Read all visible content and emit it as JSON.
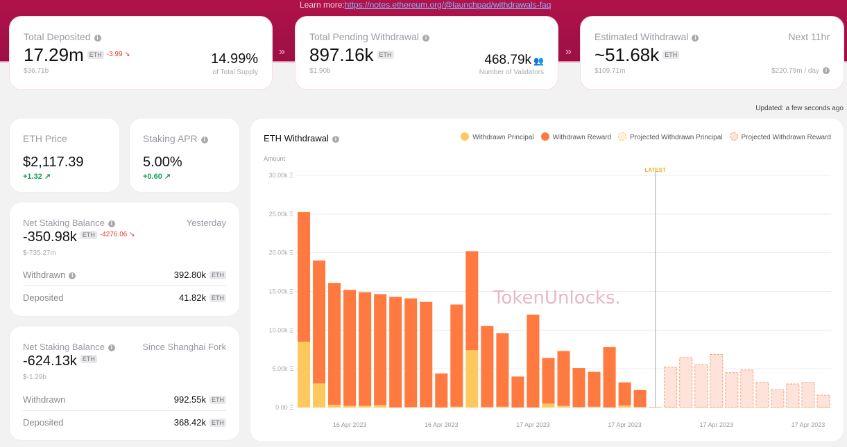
{
  "header": {
    "learn_more": "Learn more:",
    "link": "https://notes.ethereum.org/@launchpad/withdrawals-faq"
  },
  "total_deposited": {
    "label": "Total Deposited",
    "value": "17.29m",
    "unit": "ETH",
    "change": "-3.99 ↘",
    "usd": "$36.71b",
    "pct": "14.99%",
    "pct_label": "of Total Supply"
  },
  "pending": {
    "label": "Total Pending Withdrawal",
    "value": "897.16k",
    "unit": "ETH",
    "usd": "$1.90b",
    "validators": "468.79k",
    "validators_label": "Number of Validators"
  },
  "estimated": {
    "label": "Estimated Withdrawal",
    "period": "Next 11hr",
    "value": "~51.68k",
    "unit": "ETH",
    "usd": "$109.71m",
    "per_day": "$220.79m / day"
  },
  "updated": "Updated: a few seconds ago",
  "eth_price": {
    "label": "ETH Price",
    "value": "$2,117.39",
    "change": "+1.32 ↗"
  },
  "apr": {
    "label": "Staking APR",
    "value": "5.00%",
    "change": "+0.60 ↗"
  },
  "net_yesterday": {
    "label": "Net Staking Balance",
    "period": "Yesterday",
    "value": "-350.98k",
    "unit": "ETH",
    "change": "-4276.06 ↘",
    "usd": "$-735.27m",
    "withdrawn_label": "Withdrawn",
    "withdrawn": "392.80k",
    "deposited_label": "Deposited",
    "deposited": "41.82k"
  },
  "net_shanghai": {
    "label": "Net Staking Balance",
    "period": "Since Shanghai Fork",
    "value": "-624.13k",
    "unit": "ETH",
    "usd": "$-1.29b",
    "withdrawn_label": "Withdrawn",
    "withdrawn": "992.55k",
    "deposited_label": "Deposited",
    "deposited": "368.42k"
  },
  "colors": {
    "principal": "#fdc95f",
    "reward": "#ff7a40",
    "projected_fill": "#fde3d9",
    "brand": "#a8104a"
  },
  "chart_data": {
    "type": "bar",
    "stacked": true,
    "title": "ETH Withdrawal",
    "ylabel": "Amount",
    "ylim": [
      0,
      30000
    ],
    "yticks": [
      "0.00 Ξ",
      "5.00k Ξ",
      "10.00k Ξ",
      "15.00k Ξ",
      "20.00k Ξ",
      "25.00k Ξ",
      "30.00k Ξ"
    ],
    "xticks": [
      {
        "index": 3,
        "label": "16 Apr 2023"
      },
      {
        "index": 9,
        "label": "16 Apr 2023"
      },
      {
        "index": 15,
        "label": "17 Apr 2023"
      },
      {
        "index": 21,
        "label": "17 Apr 2023"
      },
      {
        "index": 27,
        "label": "17 Apr 2023"
      },
      {
        "index": 33,
        "label": "17 Apr 2023"
      }
    ],
    "marker": {
      "label": "LATEST",
      "index": 23
    },
    "legend": [
      "Withdrawn Principal",
      "Withdrawn Reward",
      "Projected Withdrawn Principal",
      "Projected Withdrawn Reward"
    ],
    "series": [
      {
        "name": "Withdrawn Principal",
        "values": [
          8500,
          3100,
          350,
          200,
          200,
          300,
          0,
          50,
          50,
          0,
          100,
          7400,
          50,
          100,
          0,
          0,
          500,
          200,
          50,
          100,
          0,
          250,
          50,
          0,
          null,
          null,
          null,
          null,
          null,
          null,
          null,
          null,
          null,
          null,
          null
        ]
      },
      {
        "name": "Withdrawn Reward",
        "values": [
          16750,
          15900,
          15750,
          15000,
          14700,
          14350,
          14300,
          14050,
          13600,
          4400,
          13200,
          12800,
          10500,
          9500,
          4000,
          12000,
          5900,
          7100,
          5050,
          4500,
          7800,
          3000,
          2200,
          50,
          null,
          null,
          null,
          null,
          null,
          null,
          null,
          null,
          null,
          null,
          null
        ]
      },
      {
        "name": "Projected Withdrawn Principal",
        "values": [
          null,
          null,
          null,
          null,
          null,
          null,
          null,
          null,
          null,
          null,
          null,
          null,
          null,
          null,
          null,
          null,
          null,
          null,
          null,
          null,
          null,
          null,
          null,
          null,
          100,
          50,
          100,
          100,
          50,
          50,
          50,
          50,
          50,
          50,
          100
        ]
      },
      {
        "name": "Projected Withdrawn Reward",
        "values": [
          null,
          null,
          null,
          null,
          null,
          null,
          null,
          null,
          null,
          null,
          null,
          null,
          null,
          null,
          null,
          null,
          null,
          null,
          null,
          null,
          null,
          null,
          null,
          null,
          5100,
          6400,
          5450,
          6750,
          4450,
          4800,
          3200,
          2250,
          3000,
          3200,
          1500
        ]
      }
    ]
  }
}
